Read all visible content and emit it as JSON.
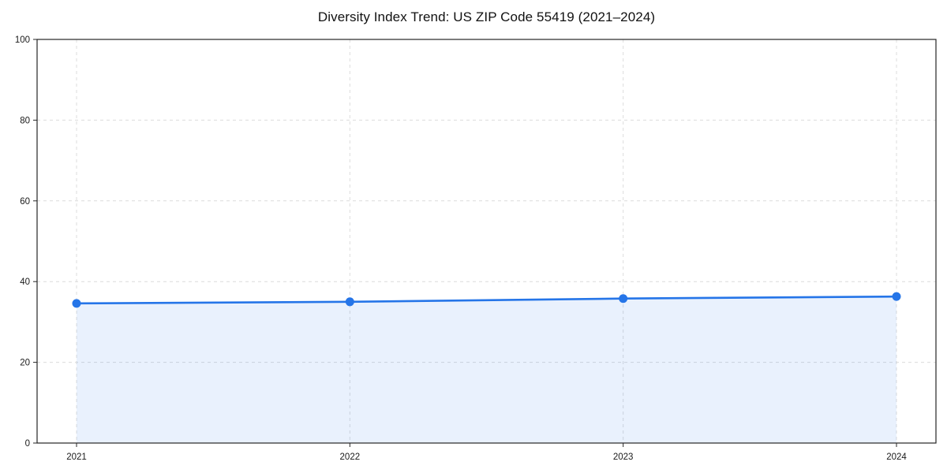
{
  "figure": {
    "background": "#ffffff"
  },
  "chart_data": {
    "type": "area",
    "title": "Diversity Index Trend: US ZIP Code 55419 (2021–2024)",
    "categories": [
      "2021",
      "2022",
      "2023",
      "2024"
    ],
    "series": [
      {
        "name": "Diversity Index",
        "values": [
          34.6,
          35.0,
          35.8,
          36.3
        ]
      }
    ],
    "xlabel": "",
    "ylabel": "",
    "ylim": [
      0,
      100
    ],
    "yticks": [
      0,
      20,
      40,
      60,
      80,
      100
    ],
    "grid": {
      "horizontal": true,
      "vertical": true,
      "style": "dashed"
    },
    "legend": "none",
    "marker": "circle",
    "colors": {
      "line": "#2575e8",
      "marker": "#2575e8",
      "area_fill_rgba": "rgba(37,117,232,0.10)",
      "grid": "#dcdcdc",
      "axis": "#262626",
      "title_text": "#111111",
      "tick_text": "#1a1a1a"
    }
  }
}
